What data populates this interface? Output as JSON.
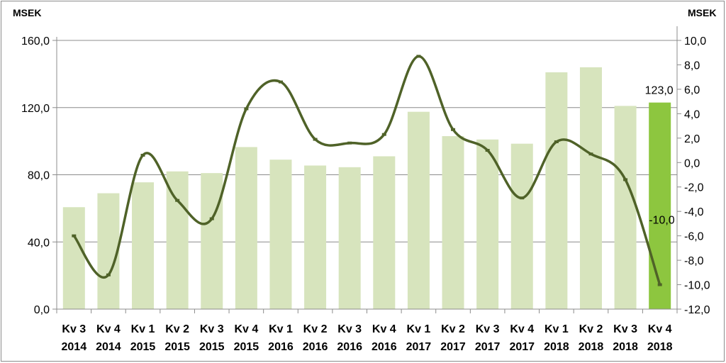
{
  "chart_data": {
    "type": "bar+line",
    "left_axis_unit": "MSEK",
    "right_axis_unit": "MSEK",
    "left_ylim": [
      0,
      160
    ],
    "left_ticks": [
      "0,0",
      "40,0",
      "80,0",
      "120,0",
      "160,0"
    ],
    "left_tick_values": [
      0,
      40,
      80,
      120,
      160
    ],
    "right_ylim": [
      -12,
      10
    ],
    "right_ticks": [
      "-12,0",
      "-10,0",
      "-8,0",
      "-6,0",
      "-4,0",
      "-2,0",
      "0,0",
      "2,0",
      "4,0",
      "6,0",
      "8,0",
      "10,0"
    ],
    "right_tick_values": [
      -12,
      -10,
      -8,
      -6,
      -4,
      -2,
      0,
      2,
      4,
      6,
      8,
      10
    ],
    "categories": [
      [
        "Kv 3",
        "2014"
      ],
      [
        "Kv 4",
        "2014"
      ],
      [
        "Kv 1",
        "2015"
      ],
      [
        "Kv 2",
        "2015"
      ],
      [
        "Kv 3",
        "2015"
      ],
      [
        "Kv 4",
        "2015"
      ],
      [
        "Kv 1",
        "2016"
      ],
      [
        "Kv 2",
        "2016"
      ],
      [
        "Kv 3",
        "2016"
      ],
      [
        "Kv 4",
        "2016"
      ],
      [
        "Kv 1",
        "2017"
      ],
      [
        "Kv 2",
        "2017"
      ],
      [
        "Kv 3",
        "2017"
      ],
      [
        "Kv 4",
        "2017"
      ],
      [
        "Kv 1",
        "2018"
      ],
      [
        "Kv 2",
        "2018"
      ],
      [
        "Kv 3",
        "2018"
      ],
      [
        "Kv 4",
        "2018"
      ]
    ],
    "bar_values": [
      60.7,
      69.0,
      75.5,
      82.0,
      81.0,
      96.5,
      89.0,
      85.5,
      84.5,
      91.0,
      117.5,
      103.0,
      101.0,
      98.5,
      141.0,
      144.0,
      121.0,
      123.0
    ],
    "line_values": [
      -6.0,
      -9.2,
      0.6,
      -3.1,
      -4.6,
      4.4,
      6.6,
      1.9,
      1.6,
      2.3,
      8.7,
      2.7,
      1.0,
      -2.9,
      1.7,
      0.7,
      -1.4,
      -10.0
    ],
    "data_labels": {
      "bar_last": "123,0",
      "line_last": "-10,0"
    },
    "colors": {
      "bar": "#d7e4bd",
      "bar_highlight": "#8dc63f",
      "line": "#4f6228",
      "grid": "#8c8c8c"
    },
    "grid": true
  }
}
